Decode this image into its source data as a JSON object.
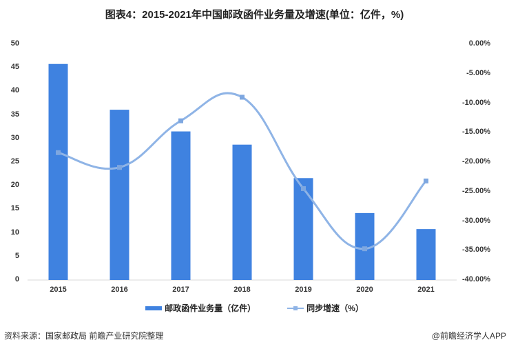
{
  "title": "图表4：2015-2021年中国邮政函件业务量及增速(单位：亿件，%)",
  "chart_data": {
    "type": "bar+line",
    "title": "图表4：2015-2021年中国邮政函件业务量及增速(单位：亿件，%)",
    "categories": [
      "2015",
      "2016",
      "2017",
      "2018",
      "2019",
      "2020",
      "2021"
    ],
    "series": [
      {
        "name": "邮政函件业务量（亿件）",
        "type": "bar",
        "axis": "left",
        "color": "#3f82e0",
        "values": [
          45.8,
          36.1,
          31.5,
          28.7,
          21.6,
          14.2,
          10.8
        ]
      },
      {
        "name": "同步增速（%）",
        "type": "line",
        "axis": "right",
        "color": "#8fb4e6",
        "values": [
          -18.4,
          -20.9,
          -13.0,
          -9.0,
          -24.5,
          -34.7,
          -23.2
        ]
      }
    ],
    "left_axis": {
      "ylim": [
        0,
        50
      ],
      "ticks": [
        "0",
        "5",
        "10",
        "15",
        "20",
        "25",
        "30",
        "35",
        "40",
        "45",
        "50"
      ]
    },
    "right_axis": {
      "ylim": [
        -40,
        0
      ],
      "ticks": [
        "0.00%",
        "-5.00%",
        "-10.00%",
        "-15.00%",
        "-20.00%",
        "-25.00%",
        "-30.00%",
        "-35.00%",
        "-40.00%"
      ]
    },
    "legend_position": "bottom",
    "grid": false
  },
  "legend": {
    "bar": "邮政函件业务量（亿件）",
    "line": "同步增速（%）"
  },
  "footer": {
    "source": "资料来源：国家邮政局 前瞻产业研究院整理",
    "brand": "@前瞻经济学人APP"
  },
  "watermark": "前瞻产业研究院"
}
